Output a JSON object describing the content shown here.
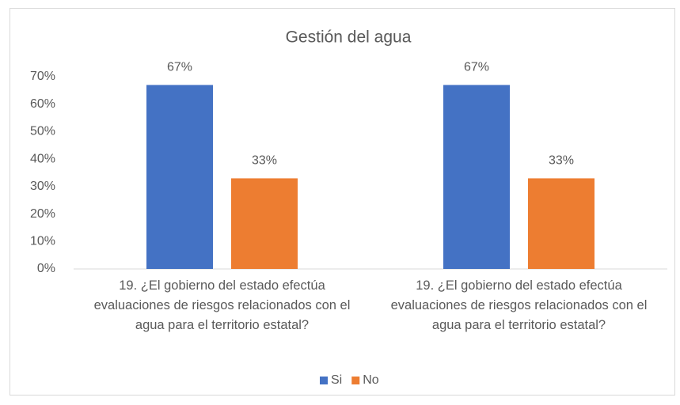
{
  "chart_data": {
    "type": "bar",
    "title": "Gestión del agua",
    "categories": [
      "19. ¿El gobierno del estado efectúa evaluaciones de riesgos relacionados con el agua para el territorio estatal?",
      "19. ¿El gobierno del estado efectúa evaluaciones de riesgos relacionados con el agua para el territorio estatal?"
    ],
    "series": [
      {
        "name": "Si",
        "color": "#4472c4",
        "values": [
          67,
          67
        ],
        "value_labels": [
          "67%",
          "67%"
        ]
      },
      {
        "name": "No",
        "color": "#ed7d31",
        "values": [
          33,
          33
        ],
        "value_labels": [
          "33%",
          "33%"
        ]
      }
    ],
    "ylim": [
      0,
      70
    ],
    "yticks": [
      {
        "value": 0,
        "label": "0%"
      },
      {
        "value": 10,
        "label": "10%"
      },
      {
        "value": 20,
        "label": "20%"
      },
      {
        "value": 30,
        "label": "30%"
      },
      {
        "value": 40,
        "label": "40%"
      },
      {
        "value": 50,
        "label": "50%"
      },
      {
        "value": 60,
        "label": "60%"
      },
      {
        "value": 70,
        "label": "70%"
      }
    ],
    "grid": false,
    "legend": "bottom"
  }
}
